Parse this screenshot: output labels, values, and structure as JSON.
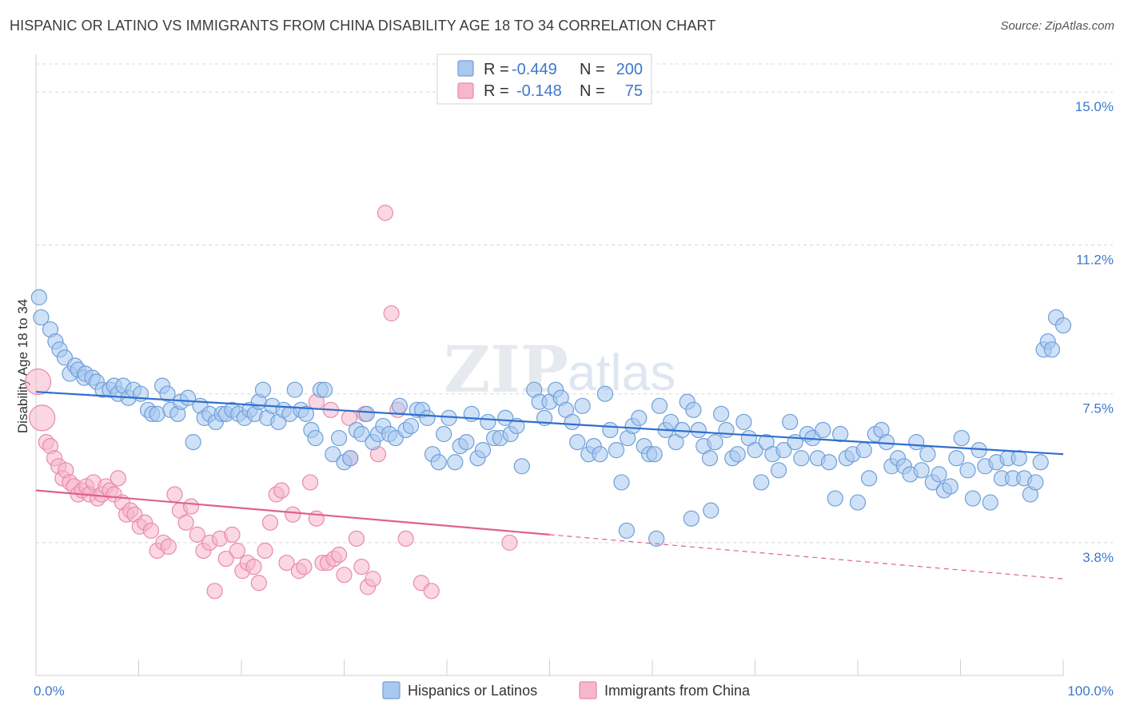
{
  "title": "HISPANIC OR LATINO VS IMMIGRANTS FROM CHINA DISABILITY AGE 18 TO 34 CORRELATION CHART",
  "source": "Source: ZipAtlas.com",
  "watermark": {
    "zip": "ZIP",
    "atlas": "atlas"
  },
  "colors": {
    "blue_fill": "#a8c8f0",
    "blue_stroke": "#6f9fd8",
    "blue_line": "#2f6fcf",
    "pink_fill": "#f6b7cb",
    "pink_stroke": "#e98aa9",
    "pink_line": "#e0608e",
    "grid": "#d8d8d8",
    "tick_text": "#3d78c9"
  },
  "legend": {
    "rows": [
      {
        "r_label": "R =",
        "r_value": "-0.449",
        "n_label": "N =",
        "n_value": "200"
      },
      {
        "r_label": "R =",
        "r_value": "-0.148",
        "n_label": "N =",
        "n_value": "75"
      }
    ]
  },
  "chart_data": {
    "type": "scatter",
    "title": "HISPANIC OR LATINO VS IMMIGRANTS FROM CHINA DISABILITY AGE 18 TO 34 CORRELATION CHART",
    "xlabel": "",
    "ylabel": "Disability Age 18 to 34",
    "xlim": [
      0,
      100
    ],
    "ylim": [
      0.5,
      15.7
    ],
    "x_tick_labels": [
      "0.0%",
      "100.0%"
    ],
    "y_ticks": [
      3.8,
      7.5,
      11.2,
      15.0
    ],
    "y_tick_labels": [
      "3.8%",
      "7.5%",
      "11.2%",
      "15.0%"
    ],
    "grid": "horizontal dashed",
    "legend_position": "top-center",
    "series": [
      {
        "name": "Hispanics or Latinos",
        "R": -0.449,
        "N": 200,
        "trend": {
          "x": [
            0,
            100
          ],
          "y": [
            7.55,
            6.0
          ],
          "dashed_from": null
        },
        "points": [
          [
            0.3,
            9.9
          ],
          [
            0.5,
            9.4
          ],
          [
            1.4,
            9.1
          ],
          [
            1.9,
            8.8
          ],
          [
            2.3,
            8.6
          ],
          [
            2.8,
            8.4
          ],
          [
            3.3,
            8.0
          ],
          [
            3.8,
            8.2
          ],
          [
            4.1,
            8.1
          ],
          [
            4.7,
            7.9
          ],
          [
            4.8,
            8.0
          ],
          [
            5.5,
            7.9
          ],
          [
            5.9,
            7.8
          ],
          [
            6.5,
            7.6
          ],
          [
            7.2,
            7.6
          ],
          [
            7.6,
            7.7
          ],
          [
            8.0,
            7.5
          ],
          [
            8.5,
            7.7
          ],
          [
            9.0,
            7.4
          ],
          [
            9.5,
            7.6
          ],
          [
            10.2,
            7.5
          ],
          [
            10.9,
            7.1
          ],
          [
            11.3,
            7.0
          ],
          [
            11.8,
            7.0
          ],
          [
            12.3,
            7.7
          ],
          [
            12.8,
            7.5
          ],
          [
            13.1,
            7.1
          ],
          [
            13.8,
            7.0
          ],
          [
            14.1,
            7.3
          ],
          [
            14.8,
            7.4
          ],
          [
            15.3,
            6.3
          ],
          [
            16.0,
            7.2
          ],
          [
            16.4,
            6.9
          ],
          [
            16.9,
            7.0
          ],
          [
            17.5,
            6.8
          ],
          [
            18.1,
            7.0
          ],
          [
            18.5,
            7.0
          ],
          [
            19.1,
            7.1
          ],
          [
            19.7,
            7.0
          ],
          [
            20.3,
            6.9
          ],
          [
            20.8,
            7.1
          ],
          [
            21.3,
            7.0
          ],
          [
            21.7,
            7.3
          ],
          [
            22.1,
            7.6
          ],
          [
            22.5,
            6.9
          ],
          [
            23.0,
            7.2
          ],
          [
            23.6,
            6.8
          ],
          [
            24.1,
            7.1
          ],
          [
            24.7,
            7.0
          ],
          [
            25.2,
            7.6
          ],
          [
            25.8,
            7.1
          ],
          [
            26.3,
            7.0
          ],
          [
            26.8,
            6.6
          ],
          [
            27.2,
            6.4
          ],
          [
            27.7,
            7.6
          ],
          [
            28.1,
            7.6
          ],
          [
            28.9,
            6.0
          ],
          [
            29.5,
            6.4
          ],
          [
            30.0,
            5.8
          ],
          [
            30.6,
            5.9
          ],
          [
            31.2,
            6.6
          ],
          [
            31.7,
            6.5
          ],
          [
            32.2,
            7.0
          ],
          [
            32.8,
            6.3
          ],
          [
            33.3,
            6.5
          ],
          [
            33.8,
            6.7
          ],
          [
            34.4,
            6.5
          ],
          [
            35.0,
            6.4
          ],
          [
            35.4,
            7.2
          ],
          [
            36.0,
            6.6
          ],
          [
            36.5,
            6.7
          ],
          [
            37.1,
            7.1
          ],
          [
            37.6,
            7.1
          ],
          [
            38.1,
            6.9
          ],
          [
            38.6,
            6.0
          ],
          [
            39.2,
            5.8
          ],
          [
            39.7,
            6.5
          ],
          [
            40.2,
            6.9
          ],
          [
            40.8,
            5.8
          ],
          [
            41.3,
            6.2
          ],
          [
            41.9,
            6.3
          ],
          [
            42.4,
            7.0
          ],
          [
            43.0,
            5.9
          ],
          [
            43.5,
            6.1
          ],
          [
            44.0,
            6.8
          ],
          [
            44.6,
            6.4
          ],
          [
            45.2,
            6.4
          ],
          [
            45.7,
            6.9
          ],
          [
            46.2,
            6.5
          ],
          [
            46.8,
            6.7
          ],
          [
            47.3,
            5.7
          ],
          [
            48.5,
            7.6
          ],
          [
            49.0,
            7.3
          ],
          [
            49.5,
            6.9
          ],
          [
            50.0,
            7.3
          ],
          [
            50.6,
            7.6
          ],
          [
            51.1,
            7.4
          ],
          [
            51.6,
            7.1
          ],
          [
            52.2,
            6.8
          ],
          [
            52.7,
            6.3
          ],
          [
            53.2,
            7.2
          ],
          [
            53.8,
            6.0
          ],
          [
            54.3,
            6.2
          ],
          [
            54.9,
            6.0
          ],
          [
            55.4,
            7.5
          ],
          [
            55.9,
            6.6
          ],
          [
            56.5,
            6.1
          ],
          [
            57.0,
            5.3
          ],
          [
            57.6,
            6.4
          ],
          [
            58.1,
            6.7
          ],
          [
            58.7,
            6.9
          ],
          [
            59.2,
            6.2
          ],
          [
            59.7,
            6.0
          ],
          [
            60.2,
            6.0
          ],
          [
            60.7,
            7.2
          ],
          [
            61.3,
            6.6
          ],
          [
            61.8,
            6.8
          ],
          [
            62.3,
            6.3
          ],
          [
            62.9,
            6.6
          ],
          [
            63.4,
            7.3
          ],
          [
            64.0,
            7.1
          ],
          [
            64.5,
            6.6
          ],
          [
            65.0,
            6.2
          ],
          [
            65.6,
            5.9
          ],
          [
            66.1,
            6.3
          ],
          [
            66.7,
            7.0
          ],
          [
            67.2,
            6.6
          ],
          [
            67.8,
            5.9
          ],
          [
            68.3,
            6.0
          ],
          [
            68.9,
            6.8
          ],
          [
            69.4,
            6.4
          ],
          [
            70.0,
            6.1
          ],
          [
            70.6,
            5.3
          ],
          [
            71.1,
            6.3
          ],
          [
            71.7,
            6.0
          ],
          [
            72.3,
            5.6
          ],
          [
            72.8,
            6.1
          ],
          [
            73.4,
            6.8
          ],
          [
            73.9,
            6.3
          ],
          [
            74.5,
            5.9
          ],
          [
            75.1,
            6.5
          ],
          [
            75.6,
            6.4
          ],
          [
            76.1,
            5.9
          ],
          [
            76.6,
            6.6
          ],
          [
            77.2,
            5.8
          ],
          [
            77.8,
            4.9
          ],
          [
            78.3,
            6.5
          ],
          [
            78.9,
            5.9
          ],
          [
            79.5,
            6.0
          ],
          [
            80.0,
            4.8
          ],
          [
            80.6,
            6.1
          ],
          [
            81.1,
            5.4
          ],
          [
            81.7,
            6.5
          ],
          [
            82.3,
            6.6
          ],
          [
            82.8,
            6.3
          ],
          [
            83.3,
            5.7
          ],
          [
            83.9,
            5.9
          ],
          [
            84.5,
            5.7
          ],
          [
            85.1,
            5.5
          ],
          [
            85.7,
            6.3
          ],
          [
            86.2,
            5.6
          ],
          [
            86.8,
            6.0
          ],
          [
            87.3,
            5.3
          ],
          [
            87.9,
            5.5
          ],
          [
            88.4,
            5.1
          ],
          [
            89.0,
            5.2
          ],
          [
            89.6,
            5.9
          ],
          [
            90.1,
            6.4
          ],
          [
            90.7,
            5.6
          ],
          [
            91.2,
            4.9
          ],
          [
            91.8,
            6.1
          ],
          [
            92.4,
            5.7
          ],
          [
            92.9,
            4.8
          ],
          [
            93.5,
            5.8
          ],
          [
            94.0,
            5.4
          ],
          [
            94.6,
            5.9
          ],
          [
            95.1,
            5.4
          ],
          [
            95.7,
            5.9
          ],
          [
            96.2,
            5.4
          ],
          [
            96.8,
            5.0
          ],
          [
            97.3,
            5.3
          ],
          [
            97.8,
            5.8
          ],
          [
            98.1,
            8.6
          ],
          [
            98.5,
            8.8
          ],
          [
            98.9,
            8.6
          ],
          [
            99.3,
            9.4
          ],
          [
            100.0,
            9.2
          ],
          [
            57.5,
            4.1
          ],
          [
            60.4,
            3.9
          ],
          [
            63.8,
            4.4
          ],
          [
            65.7,
            4.6
          ]
        ]
      },
      {
        "name": "Immigrants from China",
        "R": -0.148,
        "N": 75,
        "trend": {
          "x": [
            0,
            100
          ],
          "y": [
            5.1,
            2.9
          ],
          "dashed_from": 50
        },
        "points": [
          [
            0.2,
            7.8
          ],
          [
            0.6,
            6.9
          ],
          [
            1.0,
            6.3
          ],
          [
            1.4,
            6.2
          ],
          [
            1.8,
            5.9
          ],
          [
            2.2,
            5.7
          ],
          [
            2.6,
            5.4
          ],
          [
            2.9,
            5.6
          ],
          [
            3.3,
            5.3
          ],
          [
            3.7,
            5.2
          ],
          [
            4.1,
            5.0
          ],
          [
            4.5,
            5.1
          ],
          [
            4.9,
            5.2
          ],
          [
            5.2,
            5.0
          ],
          [
            5.6,
            5.3
          ],
          [
            6.0,
            4.9
          ],
          [
            6.4,
            5.0
          ],
          [
            6.8,
            5.2
          ],
          [
            7.2,
            5.1
          ],
          [
            7.6,
            5.0
          ],
          [
            8.0,
            5.4
          ],
          [
            8.4,
            4.8
          ],
          [
            8.8,
            4.5
          ],
          [
            9.2,
            4.6
          ],
          [
            9.6,
            4.5
          ],
          [
            10.1,
            4.2
          ],
          [
            10.6,
            4.3
          ],
          [
            11.2,
            4.1
          ],
          [
            11.8,
            3.6
          ],
          [
            12.4,
            3.8
          ],
          [
            12.9,
            3.7
          ],
          [
            13.5,
            5.0
          ],
          [
            14.0,
            4.6
          ],
          [
            14.6,
            4.3
          ],
          [
            15.1,
            4.7
          ],
          [
            15.7,
            4.0
          ],
          [
            16.3,
            3.6
          ],
          [
            16.9,
            3.8
          ],
          [
            17.4,
            2.6
          ],
          [
            17.9,
            3.9
          ],
          [
            18.5,
            3.4
          ],
          [
            19.1,
            4.0
          ],
          [
            19.6,
            3.6
          ],
          [
            20.1,
            3.1
          ],
          [
            20.6,
            3.3
          ],
          [
            21.2,
            3.2
          ],
          [
            21.7,
            2.8
          ],
          [
            22.3,
            3.6
          ],
          [
            22.8,
            4.3
          ],
          [
            23.4,
            5.0
          ],
          [
            23.9,
            5.1
          ],
          [
            24.4,
            3.3
          ],
          [
            25.0,
            4.5
          ],
          [
            25.6,
            3.1
          ],
          [
            26.1,
            3.2
          ],
          [
            26.7,
            5.3
          ],
          [
            27.3,
            4.4
          ],
          [
            27.9,
            3.3
          ],
          [
            28.4,
            3.3
          ],
          [
            29.0,
            3.4
          ],
          [
            29.5,
            3.5
          ],
          [
            30.0,
            3.0
          ],
          [
            30.6,
            5.9
          ],
          [
            31.2,
            3.9
          ],
          [
            31.7,
            3.2
          ],
          [
            32.3,
            2.7
          ],
          [
            32.8,
            2.9
          ],
          [
            33.3,
            6.0
          ],
          [
            34.0,
            12.0
          ],
          [
            34.6,
            9.5
          ],
          [
            35.2,
            7.1
          ],
          [
            36.0,
            3.9
          ],
          [
            37.5,
            2.8
          ],
          [
            38.5,
            2.6
          ],
          [
            46.1,
            3.8
          ],
          [
            27.3,
            7.3
          ],
          [
            28.7,
            7.1
          ],
          [
            30.5,
            6.9
          ],
          [
            32.0,
            7.0
          ]
        ]
      }
    ]
  },
  "bottom_legend": [
    {
      "label": "Hispanics or Latinos"
    },
    {
      "label": "Immigrants from China"
    }
  ]
}
